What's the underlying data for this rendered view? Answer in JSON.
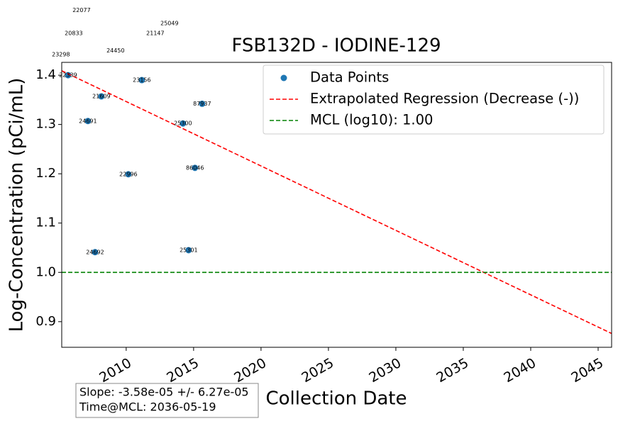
{
  "chart_data": {
    "type": "line",
    "title": "FSB132D - IODINE-129",
    "x_label": "Collection Date",
    "y_label": "Log-Concentration (pCi/mL)",
    "xlim": [
      2005.22,
      2046.0
    ],
    "ylim": [
      0.848,
      1.426
    ],
    "xticks": [
      2010,
      2015,
      2020,
      2025,
      2030,
      2035,
      2040,
      2045
    ],
    "yticks": [
      {
        "value": 0.9,
        "label": "0.9"
      },
      {
        "value": 1.0,
        "label": "1.0"
      },
      {
        "value": 1.1,
        "label": "1.1"
      },
      {
        "value": 1.2,
        "label": "1.2"
      },
      {
        "value": 1.3,
        "label": "1.3"
      },
      {
        "value": 1.4,
        "label": "1.4"
      }
    ],
    "legend": "upper right",
    "series": [
      {
        "name": "Data Points",
        "kind": "scatter",
        "color": "#1f77b4",
        "x": [
          2005.69,
          2007.16,
          2007.69,
          2008.16,
          2010.16,
          2011.16,
          2014.21,
          2014.63,
          2015.1,
          2015.63
        ],
        "values": [
          1.4,
          1.307,
          1.041,
          1.357,
          1.199,
          1.39,
          1.302,
          1.045,
          1.212,
          1.342
        ],
        "point_labels": [
          "22339",
          "24691",
          "24692",
          "21609",
          "22996",
          "23156",
          "25300",
          "25301",
          "86046",
          "87937"
        ]
      },
      {
        "name": "Extrapolated Regression (Decrease (-))",
        "kind": "dashed",
        "color": "#ff0000",
        "x": [
          2005.22,
          2046.0
        ],
        "values": [
          1.409,
          0.876
        ]
      },
      {
        "name": "MCL (log10): 1.00",
        "kind": "dashed",
        "color": "#008000",
        "x": [
          2005.22,
          2046.0
        ],
        "values": [
          1.0,
          1.0
        ]
      }
    ],
    "annotations": [
      {
        "text": "22077",
        "x": 2006.69,
        "y": 1.532
      },
      {
        "text": "20833",
        "x": 2006.11,
        "y": 1.485
      },
      {
        "text": "23298",
        "x": 2005.16,
        "y": 1.442
      },
      {
        "text": "24450",
        "x": 2009.21,
        "y": 1.45
      },
      {
        "text": "21147",
        "x": 2012.16,
        "y": 1.485
      },
      {
        "text": "25049",
        "x": 2013.21,
        "y": 1.505
      }
    ],
    "stats_box": [
      "Slope: -3.58e-05 +/- 6.27e-05",
      "Time@MCL: 2036-05-19"
    ]
  }
}
